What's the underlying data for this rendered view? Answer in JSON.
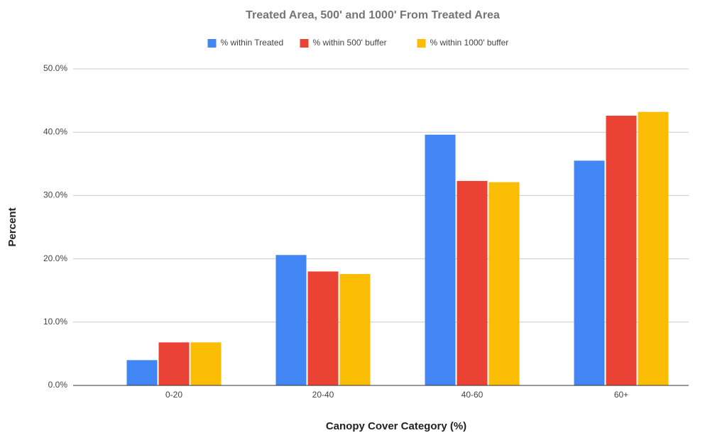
{
  "chart_data": {
    "type": "bar",
    "title": "Treated Area, 500' and 1000' From Treated Area",
    "x_label": "Canopy Cover Category (%)",
    "y_label": "Percent",
    "categories": [
      "0-20",
      "20-40",
      "40-60",
      "60+"
    ],
    "series": [
      {
        "name": "% within Treated",
        "color": "#4285f4",
        "values": [
          4.0,
          20.6,
          39.6,
          35.5
        ]
      },
      {
        "name": "% within 500' buffer",
        "color": "#ea4335",
        "values": [
          6.8,
          18.0,
          32.3,
          42.6
        ]
      },
      {
        "name": "% within 1000' buffer",
        "color": "#fbbc04",
        "values": [
          6.8,
          17.6,
          32.1,
          43.2
        ]
      }
    ],
    "ylim": [
      0,
      50
    ],
    "yticks": [
      {
        "value": 0,
        "label": "0.0%"
      },
      {
        "value": 10,
        "label": "10.0%"
      },
      {
        "value": 20,
        "label": "20.0%"
      },
      {
        "value": 30,
        "label": "30.0%"
      },
      {
        "value": 40,
        "label": "40.0%"
      },
      {
        "value": 50,
        "label": "50.0%"
      }
    ],
    "grid": true,
    "legend": "top"
  }
}
